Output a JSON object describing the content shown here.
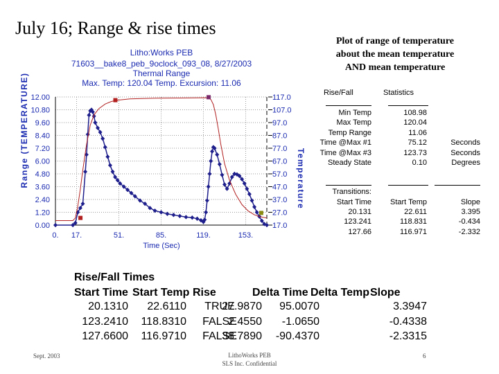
{
  "slide_title": "July 16; Range & rise times",
  "side_note": [
    "Plot of range of temperature",
    "about the mean temperature",
    "AND mean temperature"
  ],
  "chart_header": {
    "line1": "Litho:Works PEB",
    "line2": "71603__bake8_peb_9oclock_093_08, 8/27/2003",
    "line3": "Thermal Range",
    "line4": "Max. Temp: 120.04  Temp. Excursion: 11.06"
  },
  "chart_data": {
    "type": "line",
    "xlabel": "Time (Sec)",
    "ylabel": "Range (TEMPERATURE)",
    "y2label": "Temperature",
    "xlim": [
      0,
      170
    ],
    "xticks": [
      "0.",
      "17.",
      "51.",
      "85.",
      "119.",
      "153."
    ],
    "xtick_values": [
      0,
      17,
      51,
      85,
      119,
      153
    ],
    "ylim": [
      0,
      12
    ],
    "yticks": [
      "12.00",
      "10.80",
      "9.60",
      "8.40",
      "7.20",
      "6.00",
      "4.80",
      "3.60",
      "2.40",
      "1.20",
      "0.00"
    ],
    "y2lim": [
      17,
      117
    ],
    "y2ticks": [
      "117.0",
      "107.0",
      "97.0",
      "87.0",
      "77.0",
      "67.0",
      "57.0",
      "47.0",
      "37.0",
      "27.0",
      "17.0"
    ],
    "series": [
      {
        "color": "#1e1e8c",
        "x": [
          0,
          14,
          16,
          18,
          20,
          22,
          24,
          25,
          26,
          27,
          28,
          29,
          30,
          31,
          32,
          34,
          36,
          38,
          40,
          42,
          44,
          46,
          48,
          50,
          52,
          55,
          58,
          61,
          64,
          68,
          72,
          76,
          80,
          85,
          90,
          95,
          100,
          105,
          110,
          114,
          117,
          119,
          120,
          121,
          122,
          123,
          124,
          125,
          126,
          127,
          128,
          130,
          132,
          134,
          136,
          138,
          140,
          142,
          144,
          146,
          148,
          150,
          152,
          154,
          156,
          158,
          160,
          162,
          164,
          166,
          168,
          170
        ],
        "values": [
          0.0,
          0.0,
          0.2,
          1.2,
          1.6,
          2.0,
          5.0,
          6.6,
          8.5,
          10.3,
          10.7,
          10.8,
          10.6,
          10.2,
          9.6,
          9.1,
          8.7,
          8.1,
          7.3,
          6.4,
          5.6,
          5.0,
          4.5,
          4.2,
          3.9,
          3.6,
          3.3,
          3.0,
          2.7,
          2.3,
          2.0,
          1.6,
          1.35,
          1.2,
          1.05,
          0.95,
          0.85,
          0.75,
          0.7,
          0.6,
          0.45,
          0.3,
          0.5,
          1.2,
          2.3,
          3.6,
          4.8,
          6.0,
          6.9,
          7.3,
          7.2,
          6.6,
          5.7,
          4.7,
          3.8,
          3.4,
          3.9,
          4.5,
          4.8,
          4.75,
          4.6,
          4.3,
          3.9,
          3.4,
          2.9,
          2.3,
          1.7,
          1.2,
          0.8,
          0.4,
          0.1,
          0.0
        ]
      },
      {
        "color": "#b22020",
        "axis": "secondary",
        "x": [
          0,
          14,
          16,
          18,
          20,
          22,
          25,
          28,
          31,
          35,
          40,
          45,
          50,
          60,
          80,
          100,
          115,
          120,
          123,
          125,
          127,
          129,
          131,
          133,
          136,
          140,
          145,
          150,
          155,
          160,
          165,
          170
        ],
        "values": [
          20.5,
          20.5,
          22.5,
          32,
          45,
          60,
          80,
          95,
          103,
          108,
          111.5,
          113.5,
          114.5,
          115.5,
          116,
          116.2,
          116.3,
          116.4,
          116.3,
          115,
          111,
          103,
          92,
          80,
          65,
          52,
          41,
          33,
          28,
          25,
          23.5,
          22.5
        ]
      }
    ],
    "markers": [
      {
        "x": 20.1,
        "y2": 22.6,
        "color": "#b22020"
      },
      {
        "x": 48.2,
        "y2": 114.5,
        "color": "#b22020"
      },
      {
        "x": 123.2,
        "y2": 116.8,
        "color": "#7a2a6a"
      },
      {
        "x": 165.5,
        "y2": 26.5,
        "color": "#8a8a10"
      }
    ]
  },
  "stats": {
    "rise_fall_label": "Rise/Fall",
    "statistics_label": "Statistics",
    "rows": [
      {
        "label": "Min Temp",
        "value": "108.98",
        "unit": ""
      },
      {
        "label": "Max Temp",
        "value": "120.04",
        "unit": ""
      },
      {
        "label": "Temp Range",
        "value": "11.06",
        "unit": ""
      },
      {
        "label": "Time @Max #1",
        "value": "75.12",
        "unit": "Seconds"
      },
      {
        "label": "Time @Max #3",
        "value": "123.73",
        "unit": "Seconds"
      },
      {
        "label": "Steady State",
        "value": "0.10",
        "unit": "Degrees"
      }
    ],
    "transitions_label": "Transitions:",
    "trans_headers": [
      "Start Time",
      "Start Temp",
      "Slope"
    ],
    "trans_rows": [
      [
        "20.131",
        "22.611",
        "3.395"
      ],
      [
        "123.241",
        "118.831",
        "-0.434"
      ],
      [
        "127.66",
        "116.971",
        "-2.332"
      ]
    ]
  },
  "table": {
    "title": "Rise/Fall Times",
    "headers": [
      "Start Time",
      "Start Temp",
      "Rise",
      "Delta Time",
      "Delta Temp",
      "Slope"
    ],
    "rows": [
      [
        "20.1310",
        "22.6110",
        "TRUE",
        "27.9870",
        "95.0070",
        "3.3947"
      ],
      [
        "123.2410",
        "118.8310",
        "FALSE",
        "2.4550",
        "-1.0650",
        "-0.4338"
      ],
      [
        "127.6600",
        "116.9710",
        "FALSE",
        "38.7890",
        "-90.4370",
        "-2.3315"
      ]
    ]
  },
  "footer": {
    "left": "Sept. 2003",
    "center_line1": "LithoWorks PEB",
    "center_line2": "SLS Inc. Confidential",
    "right": "6"
  },
  "colors": {
    "axis_label_blue": "#1a2ab0",
    "data_blue": "#1e1e8c",
    "temp_red": "#b22020",
    "grid": "#9a9a9a"
  }
}
